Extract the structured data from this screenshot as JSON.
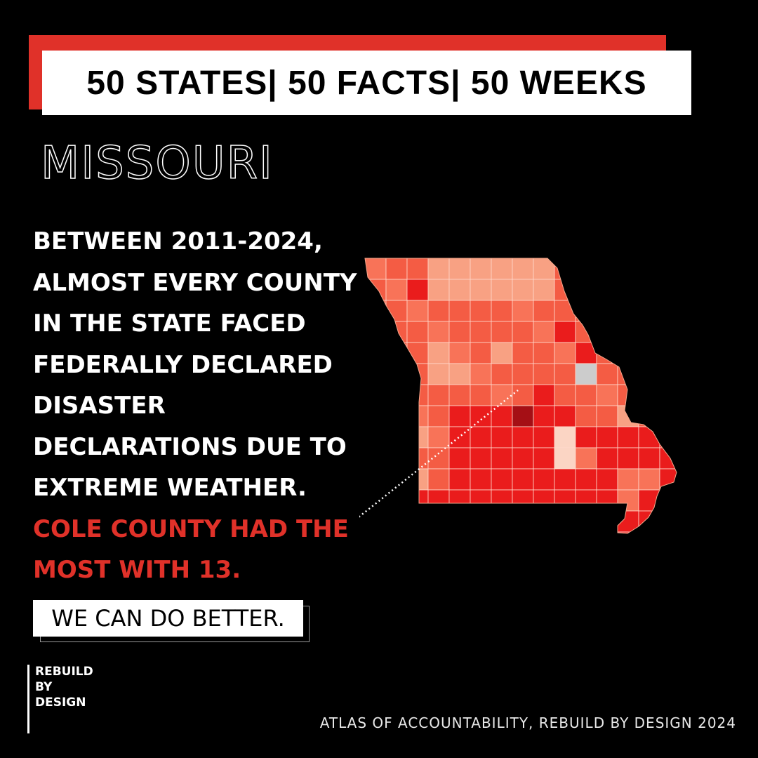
{
  "header": {
    "banner": "50 STATES| 50 FACTS| 50 WEEKS",
    "state": "MISSOURI"
  },
  "fact": {
    "lines": [
      "BETWEEN 2011-2024,",
      "ALMOST EVERY COUNTY",
      "IN THE STATE FACED",
      "FEDERALLY DECLARED",
      "DISASTER",
      "DECLARATIONS DUE TO",
      "EXTREME WEATHER."
    ],
    "highlight_lines": [
      "COLE COUNTY HAD THE",
      "MOST WITH 13."
    ]
  },
  "map": {
    "highlighted_county": "Cole County",
    "highlighted_count": 13,
    "colors": {
      "very_light": "#fbd5c4",
      "light": "#f8a183",
      "medium": "#f87358",
      "medium_dark": "#f45c44",
      "dark": "#ea1c1c",
      "darkest": "#a50f15",
      "no_data": "#cccccc",
      "border": "#ffd9cc"
    }
  },
  "cta": {
    "label": "WE CAN DO BETTER."
  },
  "logo": {
    "lines": [
      "REBUILD",
      "BY",
      "DESIGN"
    ]
  },
  "footer": {
    "credit": "ATLAS OF ACCOUNTABILITY, REBUILD BY DESIGN 2024"
  },
  "colors": {
    "background": "#000000",
    "accent": "#e03129",
    "text": "#ffffff"
  }
}
